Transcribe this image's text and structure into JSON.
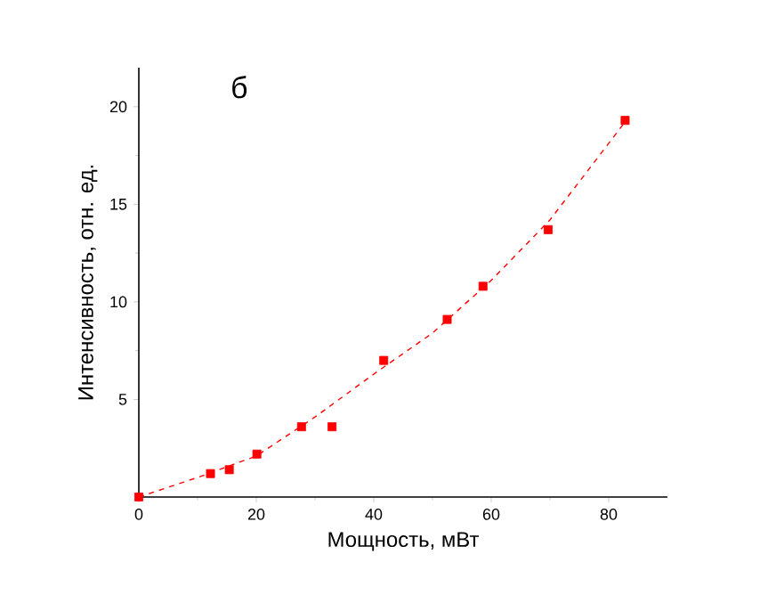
{
  "chart_data": {
    "type": "scatter",
    "xlabel": "Мощность, мВт",
    "ylabel": "Интенсивность, отн. ед.",
    "annotations": [
      "б"
    ],
    "xlim": [
      0,
      90
    ],
    "ylim": [
      0,
      22
    ],
    "xticks": [
      0,
      20,
      40,
      60,
      80
    ],
    "yticks": [
      5,
      10,
      15,
      20
    ],
    "grid": false,
    "series": [
      {
        "marker": "square",
        "color": "#ff0000",
        "x": [
          0,
          12.2,
          15.4,
          20.1,
          27.7,
          32.9,
          41.7,
          52.5,
          58.6,
          69.7,
          82.8
        ],
        "values": [
          0,
          1.2,
          1.4,
          2.2,
          3.6,
          3.6,
          7.0,
          9.1,
          10.8,
          13.7,
          19.3
        ]
      },
      {
        "type": "line",
        "marker": "none",
        "line_style": "dashed",
        "color": "#ff0000",
        "x": [
          0,
          10,
          20,
          30,
          40,
          50,
          60,
          70,
          83
        ],
        "values": [
          0,
          1.0,
          2.1,
          4.1,
          6.3,
          8.4,
          11.1,
          14.2,
          19.3
        ]
      }
    ]
  }
}
